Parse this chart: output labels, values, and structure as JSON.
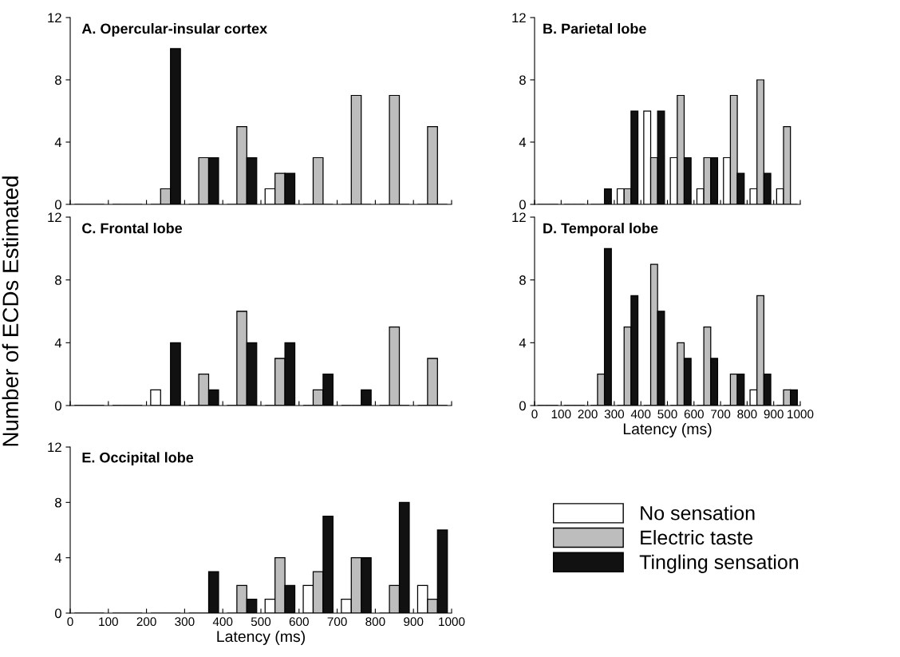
{
  "chart_data": [
    {
      "type": "bar",
      "title": "A. Opercular-insular cortex",
      "x": [
        50,
        150,
        250,
        350,
        450,
        550,
        650,
        750,
        850,
        950
      ],
      "xlim": [
        0,
        1000
      ],
      "xticks": [
        0,
        100,
        200,
        300,
        400,
        500,
        600,
        700,
        800,
        900,
        1000
      ],
      "ylim": [
        0,
        12
      ],
      "yticks": [
        0,
        4,
        8,
        12
      ],
      "tick_labels": "y",
      "grid": false,
      "legend": false,
      "series": [
        {
          "color": "#ffffff",
          "values": [
            0,
            0,
            0,
            0,
            0,
            1,
            0,
            0,
            0,
            0
          ]
        },
        {
          "color": "#bdbdbd",
          "values": [
            0,
            0,
            1,
            3,
            5,
            2,
            3,
            7,
            7,
            5
          ]
        },
        {
          "color": "#111111",
          "values": [
            0,
            0,
            10,
            3,
            3,
            2,
            0,
            0,
            0,
            0
          ]
        }
      ]
    },
    {
      "type": "bar",
      "title": "B. Parietal lobe",
      "x": [
        50,
        150,
        250,
        350,
        450,
        550,
        650,
        750,
        850,
        950
      ],
      "xlim": [
        0,
        1000
      ],
      "xticks": [
        0,
        100,
        200,
        300,
        400,
        500,
        600,
        700,
        800,
        900,
        1000
      ],
      "ylim": [
        0,
        12
      ],
      "yticks": [
        0,
        4,
        8,
        12
      ],
      "tick_labels": "y",
      "grid": false,
      "legend": false,
      "series": [
        {
          "color": "#ffffff",
          "values": [
            0,
            0,
            0,
            1,
            6,
            3,
            1,
            3,
            1,
            1
          ]
        },
        {
          "color": "#bdbdbd",
          "values": [
            0,
            0,
            0,
            1,
            3,
            7,
            3,
            7,
            8,
            5
          ]
        },
        {
          "color": "#111111",
          "values": [
            0,
            0,
            1,
            6,
            6,
            3,
            3,
            2,
            2,
            0
          ]
        }
      ]
    },
    {
      "type": "bar",
      "title": "C. Frontal lobe",
      "ylabel": "Number of ECDs Estimated",
      "x": [
        50,
        150,
        250,
        350,
        450,
        550,
        650,
        750,
        850,
        950
      ],
      "xlim": [
        0,
        1000
      ],
      "xticks": [
        0,
        100,
        200,
        300,
        400,
        500,
        600,
        700,
        800,
        900,
        1000
      ],
      "ylim": [
        0,
        12
      ],
      "yticks": [
        0,
        4,
        8,
        12
      ],
      "tick_labels": "y",
      "grid": false,
      "legend": false,
      "series": [
        {
          "color": "#ffffff",
          "values": [
            0,
            0,
            1,
            0,
            0,
            0,
            0,
            0,
            0,
            0
          ]
        },
        {
          "color": "#bdbdbd",
          "values": [
            0,
            0,
            0,
            2,
            6,
            3,
            1,
            0,
            5,
            3
          ]
        },
        {
          "color": "#111111",
          "values": [
            0,
            0,
            4,
            1,
            4,
            4,
            2,
            1,
            0,
            0
          ]
        }
      ]
    },
    {
      "type": "bar",
      "title": "D. Temporal lobe",
      "xlabel": "Latency (ms)",
      "x": [
        50,
        150,
        250,
        350,
        450,
        550,
        650,
        750,
        850,
        950
      ],
      "xlim": [
        0,
        1000
      ],
      "xticks": [
        0,
        100,
        200,
        300,
        400,
        500,
        600,
        700,
        800,
        900,
        1000
      ],
      "ylim": [
        0,
        12
      ],
      "yticks": [
        0,
        4,
        8,
        12
      ],
      "grid": false,
      "legend": false,
      "series": [
        {
          "color": "#ffffff",
          "values": [
            0,
            0,
            0,
            0,
            0,
            0,
            0,
            0,
            1,
            0
          ]
        },
        {
          "color": "#bdbdbd",
          "values": [
            0,
            0,
            2,
            5,
            9,
            4,
            5,
            2,
            7,
            1
          ]
        },
        {
          "color": "#111111",
          "values": [
            0,
            0,
            10,
            7,
            6,
            3,
            3,
            2,
            2,
            1
          ]
        }
      ]
    },
    {
      "type": "bar",
      "title": "E. Occipital lobe",
      "xlabel": "Latency (ms)",
      "x": [
        50,
        150,
        250,
        350,
        450,
        550,
        650,
        750,
        850,
        950
      ],
      "xlim": [
        0,
        1000
      ],
      "xticks": [
        0,
        100,
        200,
        300,
        400,
        500,
        600,
        700,
        800,
        900,
        1000
      ],
      "ylim": [
        0,
        12
      ],
      "yticks": [
        0,
        4,
        8,
        12
      ],
      "grid": false,
      "legend": "right",
      "series": [
        {
          "name": "No sensation",
          "color": "#ffffff",
          "values": [
            0,
            0,
            0,
            0,
            0,
            1,
            2,
            1,
            0,
            2
          ]
        },
        {
          "name": "Electric taste",
          "color": "#bdbdbd",
          "values": [
            0,
            0,
            0,
            0,
            2,
            4,
            3,
            4,
            2,
            1
          ]
        },
        {
          "name": "Tingling sensation",
          "color": "#111111",
          "values": [
            0,
            0,
            0,
            3,
            1,
            2,
            7,
            4,
            8,
            6
          ]
        }
      ]
    }
  ]
}
